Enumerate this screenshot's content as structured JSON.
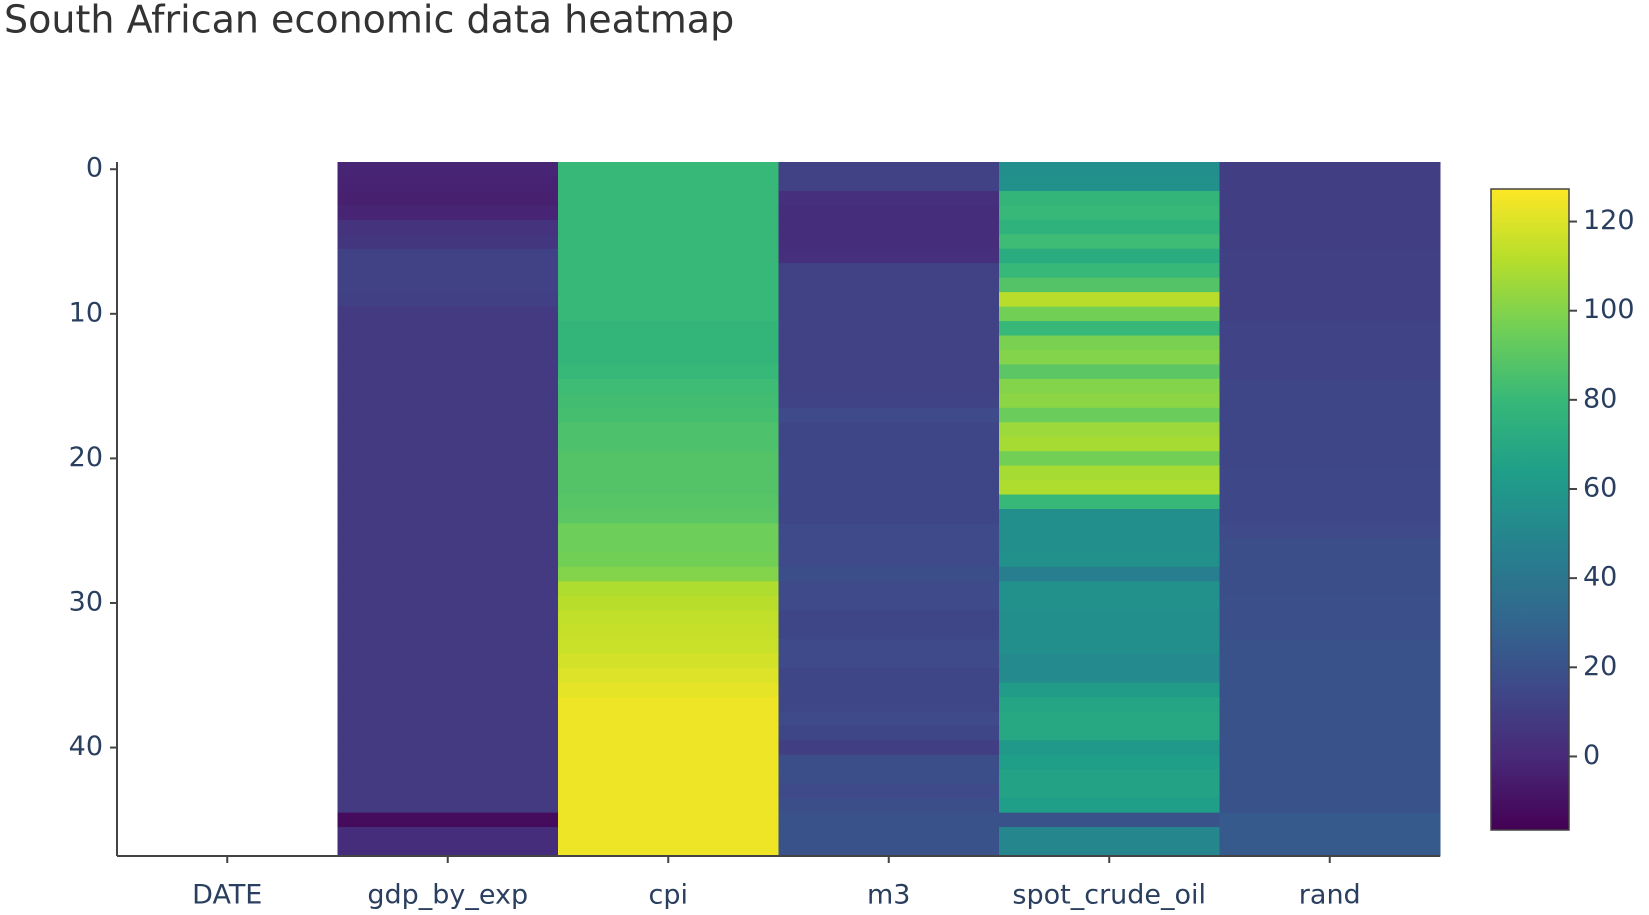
{
  "chart_data": {
    "type": "heatmap",
    "title": "South African economic data heatmap",
    "colorscale": "Viridis",
    "categories": [
      "DATE",
      "gdp_by_exp",
      "cpi",
      "m3",
      "spot_crude_oil",
      "rand"
    ],
    "y": [
      0,
      1,
      2,
      3,
      4,
      5,
      6,
      7,
      8,
      9,
      10,
      11,
      12,
      13,
      14,
      15,
      16,
      17,
      18,
      19,
      20,
      21,
      22,
      23,
      24,
      25,
      26,
      27,
      28,
      29,
      30,
      31,
      32,
      33,
      34,
      35,
      36,
      37,
      38,
      39,
      40,
      41,
      42,
      43,
      44,
      45,
      46,
      47
    ],
    "ylim": [
      47.5,
      -0.5
    ],
    "yticks": [
      0,
      10,
      20,
      30,
      40
    ],
    "zlim": [
      -16.5,
      127.3
    ],
    "colorbar_ticks": [
      0,
      20,
      40,
      60,
      80,
      100,
      120
    ],
    "z": [
      [
        null,
        -2,
        80,
        12,
        55,
        10
      ],
      [
        null,
        -3,
        80,
        12,
        56,
        10
      ],
      [
        null,
        -4,
        80,
        3,
        78,
        10
      ],
      [
        null,
        -2,
        80,
        2,
        80,
        10
      ],
      [
        null,
        5,
        80,
        2,
        76,
        10
      ],
      [
        null,
        6,
        80,
        2,
        82,
        10
      ],
      [
        null,
        12,
        80,
        3,
        72,
        11
      ],
      [
        null,
        12,
        80,
        12,
        80,
        11
      ],
      [
        null,
        12,
        80,
        12,
        88,
        11
      ],
      [
        null,
        11,
        80,
        12,
        112,
        11
      ],
      [
        null,
        8,
        80,
        12,
        96,
        11
      ],
      [
        null,
        8,
        78,
        12,
        80,
        13
      ],
      [
        null,
        8,
        78,
        12,
        98,
        13
      ],
      [
        null,
        8,
        78,
        12,
        100,
        13
      ],
      [
        null,
        8,
        80,
        12,
        90,
        13
      ],
      [
        null,
        8,
        82,
        12,
        100,
        14
      ],
      [
        null,
        8,
        83,
        13,
        102,
        14
      ],
      [
        null,
        8,
        84,
        16,
        94,
        14
      ],
      [
        null,
        8,
        86,
        14,
        106,
        14
      ],
      [
        null,
        8,
        86,
        14,
        108,
        14
      ],
      [
        null,
        8,
        88,
        14,
        96,
        14
      ],
      [
        null,
        8,
        88,
        14,
        108,
        15
      ],
      [
        null,
        8,
        88,
        14,
        110,
        15
      ],
      [
        null,
        8,
        89,
        14,
        80,
        15
      ],
      [
        null,
        8,
        90,
        14,
        55,
        15
      ],
      [
        null,
        8,
        95,
        16,
        55,
        16
      ],
      [
        null,
        8,
        95,
        16,
        55,
        18
      ],
      [
        null,
        8,
        96,
        16,
        56,
        18
      ],
      [
        null,
        8,
        100,
        18,
        45,
        18
      ],
      [
        null,
        8,
        110,
        16,
        56,
        18
      ],
      [
        null,
        8,
        112,
        16,
        56,
        19
      ],
      [
        null,
        8,
        114,
        14,
        55,
        19
      ],
      [
        null,
        8,
        115,
        14,
        55,
        19
      ],
      [
        null,
        8,
        116,
        16,
        55,
        20
      ],
      [
        null,
        8,
        118,
        16,
        52,
        20
      ],
      [
        null,
        8,
        120,
        14,
        52,
        20
      ],
      [
        null,
        8,
        122,
        14,
        62,
        20
      ],
      [
        null,
        8,
        124,
        14,
        68,
        20
      ],
      [
        null,
        8,
        124,
        16,
        70,
        20
      ],
      [
        null,
        8,
        124,
        14,
        70,
        20
      ],
      [
        null,
        8,
        124,
        10,
        60,
        20
      ],
      [
        null,
        8,
        124,
        18,
        64,
        20
      ],
      [
        null,
        8,
        124,
        18,
        66,
        20
      ],
      [
        null,
        8,
        124,
        16,
        66,
        20
      ],
      [
        null,
        8,
        124,
        18,
        64,
        20
      ],
      [
        null,
        -12,
        124,
        20,
        20,
        24
      ],
      [
        null,
        2,
        124,
        20,
        50,
        24
      ],
      [
        null,
        2,
        124,
        20,
        50,
        24
      ]
    ]
  }
}
